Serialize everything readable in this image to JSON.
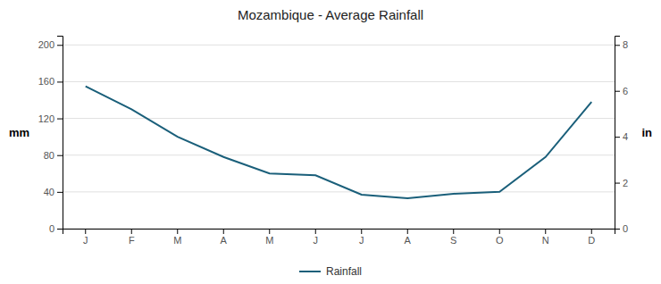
{
  "chart_data": {
    "type": "line",
    "title": "Mozambique - Average Rainfall",
    "categories": [
      "J",
      "F",
      "M",
      "A",
      "M",
      "J",
      "J",
      "A",
      "S",
      "O",
      "N",
      "D"
    ],
    "series": [
      {
        "name": "Rainfall",
        "color": "#1a5f7a",
        "values": [
          155,
          130,
          100,
          78,
          60,
          58,
          37,
          33,
          38,
          40,
          78,
          138
        ]
      }
    ],
    "y_label": "mm",
    "y2_label": "in",
    "ylim": [
      0,
      210
    ],
    "yticks": [
      0,
      40,
      80,
      120,
      160,
      200
    ],
    "y2lim": [
      0,
      8.4
    ],
    "y2ticks": [
      0,
      2,
      4,
      6,
      8
    ],
    "grid": true,
    "legend": "bottom"
  }
}
